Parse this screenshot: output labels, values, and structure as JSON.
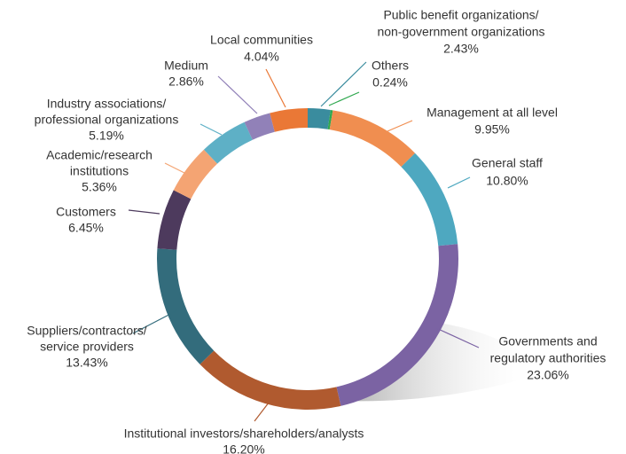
{
  "chart_data": {
    "type": "donut",
    "categories": [
      [
        "Public benefit organizations/",
        "non-government organizations"
      ],
      [
        "Others"
      ],
      [
        "Management at all level"
      ],
      [
        "General staff"
      ],
      [
        "Governments and",
        "regulatory authorities"
      ],
      [
        "Institutional investors/shareholders/analysts"
      ],
      [
        "Suppliers/contractors/",
        "service providers"
      ],
      [
        "Customers"
      ],
      [
        "Academic/research",
        "institutions"
      ],
      [
        "Industry associations/",
        "professional organizations"
      ],
      [
        "Medium"
      ],
      [
        "Local communities"
      ]
    ],
    "values": [
      2.43,
      0.24,
      9.95,
      10.8,
      23.06,
      16.2,
      13.43,
      6.45,
      5.36,
      5.19,
      2.86,
      4.04
    ],
    "value_labels": [
      "2.43%",
      "0.24%",
      "9.95%",
      "10.80%",
      "23.06%",
      "16.20%",
      "13.43%",
      "6.45%",
      "5.36%",
      "5.19%",
      "2.86%",
      "4.04%"
    ],
    "colors": [
      "#3a8c9e",
      "#2fa84f",
      "#f08e50",
      "#4ea8c0",
      "#7b63a3",
      "#b05a2f",
      "#336c7c",
      "#4d3a5d",
      "#f4a473",
      "#5eb0c6",
      "#9181b8",
      "#ea7836"
    ]
  }
}
